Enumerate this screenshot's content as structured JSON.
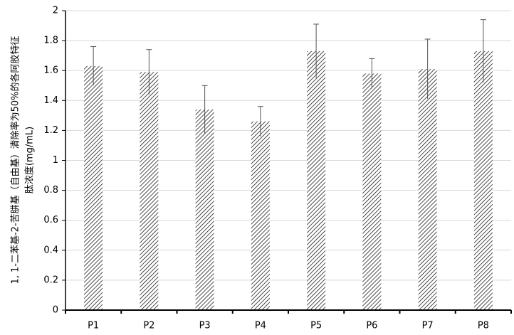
{
  "chart_data": {
    "type": "bar",
    "ylabel": [
      "1, 1-二苯基-2-苦肼基（自由基）清除率为50%的各阿胶特征",
      "肽浓度(mg/mL)"
    ],
    "categories": [
      "P1",
      "P2",
      "P3",
      "P4",
      "P5",
      "P6",
      "P7",
      "P8"
    ],
    "values": [
      1.63,
      1.59,
      1.34,
      1.26,
      1.73,
      1.58,
      1.61,
      1.73
    ],
    "errors": [
      0.13,
      0.15,
      0.16,
      0.1,
      0.18,
      0.1,
      0.2,
      0.21
    ],
    "color": "#000000",
    "ylim": [
      0,
      2
    ],
    "yticks": [
      0,
      0.2,
      0.4,
      0.6,
      0.8,
      1,
      1.2,
      1.4,
      1.6,
      1.8,
      2
    ],
    "grid": true
  }
}
